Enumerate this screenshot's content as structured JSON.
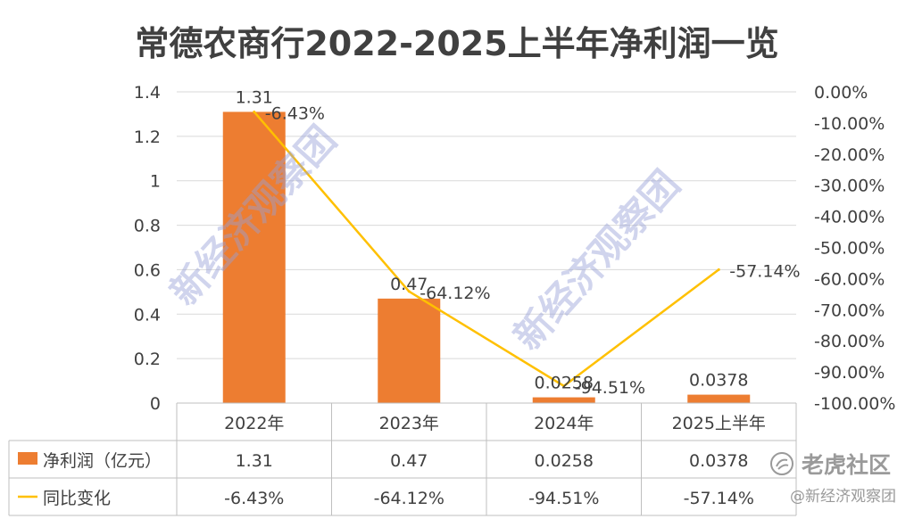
{
  "chart_data": {
    "type": "bar+line",
    "title": "常德农商行2022-2025上半年净利润一览",
    "categories": [
      "2022年",
      "2023年",
      "2024年",
      "2025上半年"
    ],
    "series": [
      {
        "name": "净利润（亿元）",
        "type": "bar",
        "axis": "left",
        "values": [
          1.31,
          0.47,
          0.0258,
          0.0378
        ],
        "labels": [
          "1.31",
          "0.47",
          "0.0258",
          "0.0378"
        ],
        "color": "#ED7D31"
      },
      {
        "name": "同比变化",
        "type": "line",
        "axis": "right",
        "values": [
          -6.43,
          -64.12,
          -94.51,
          -57.14
        ],
        "labels": [
          "-6.43%",
          "-64.12%",
          "-94.51%",
          "-57.14%"
        ],
        "color": "#FFC000"
      }
    ],
    "y_left": {
      "min": 0,
      "max": 1.4,
      "ticks": [
        "0",
        "0.2",
        "0.4",
        "0.6",
        "0.8",
        "1",
        "1.2",
        "1.4"
      ]
    },
    "y_right": {
      "min": -100,
      "max": 0,
      "ticks": [
        "0.00%",
        "-10.00%",
        "-20.00%",
        "-30.00%",
        "-40.00%",
        "-50.00%",
        "-60.00%",
        "-70.00%",
        "-80.00%",
        "-90.00%",
        "-100.00%"
      ]
    },
    "grid": true,
    "legend": "data-table"
  },
  "watermarks": [
    "新经济观察团",
    "新经济观察团"
  ],
  "branding": {
    "platform": "老虎社区",
    "account": "@新经济观察团"
  },
  "colors": {
    "text": "#404040",
    "grid": "#D9D9D9",
    "bar": "#ED7D31",
    "line": "#FFC000"
  }
}
